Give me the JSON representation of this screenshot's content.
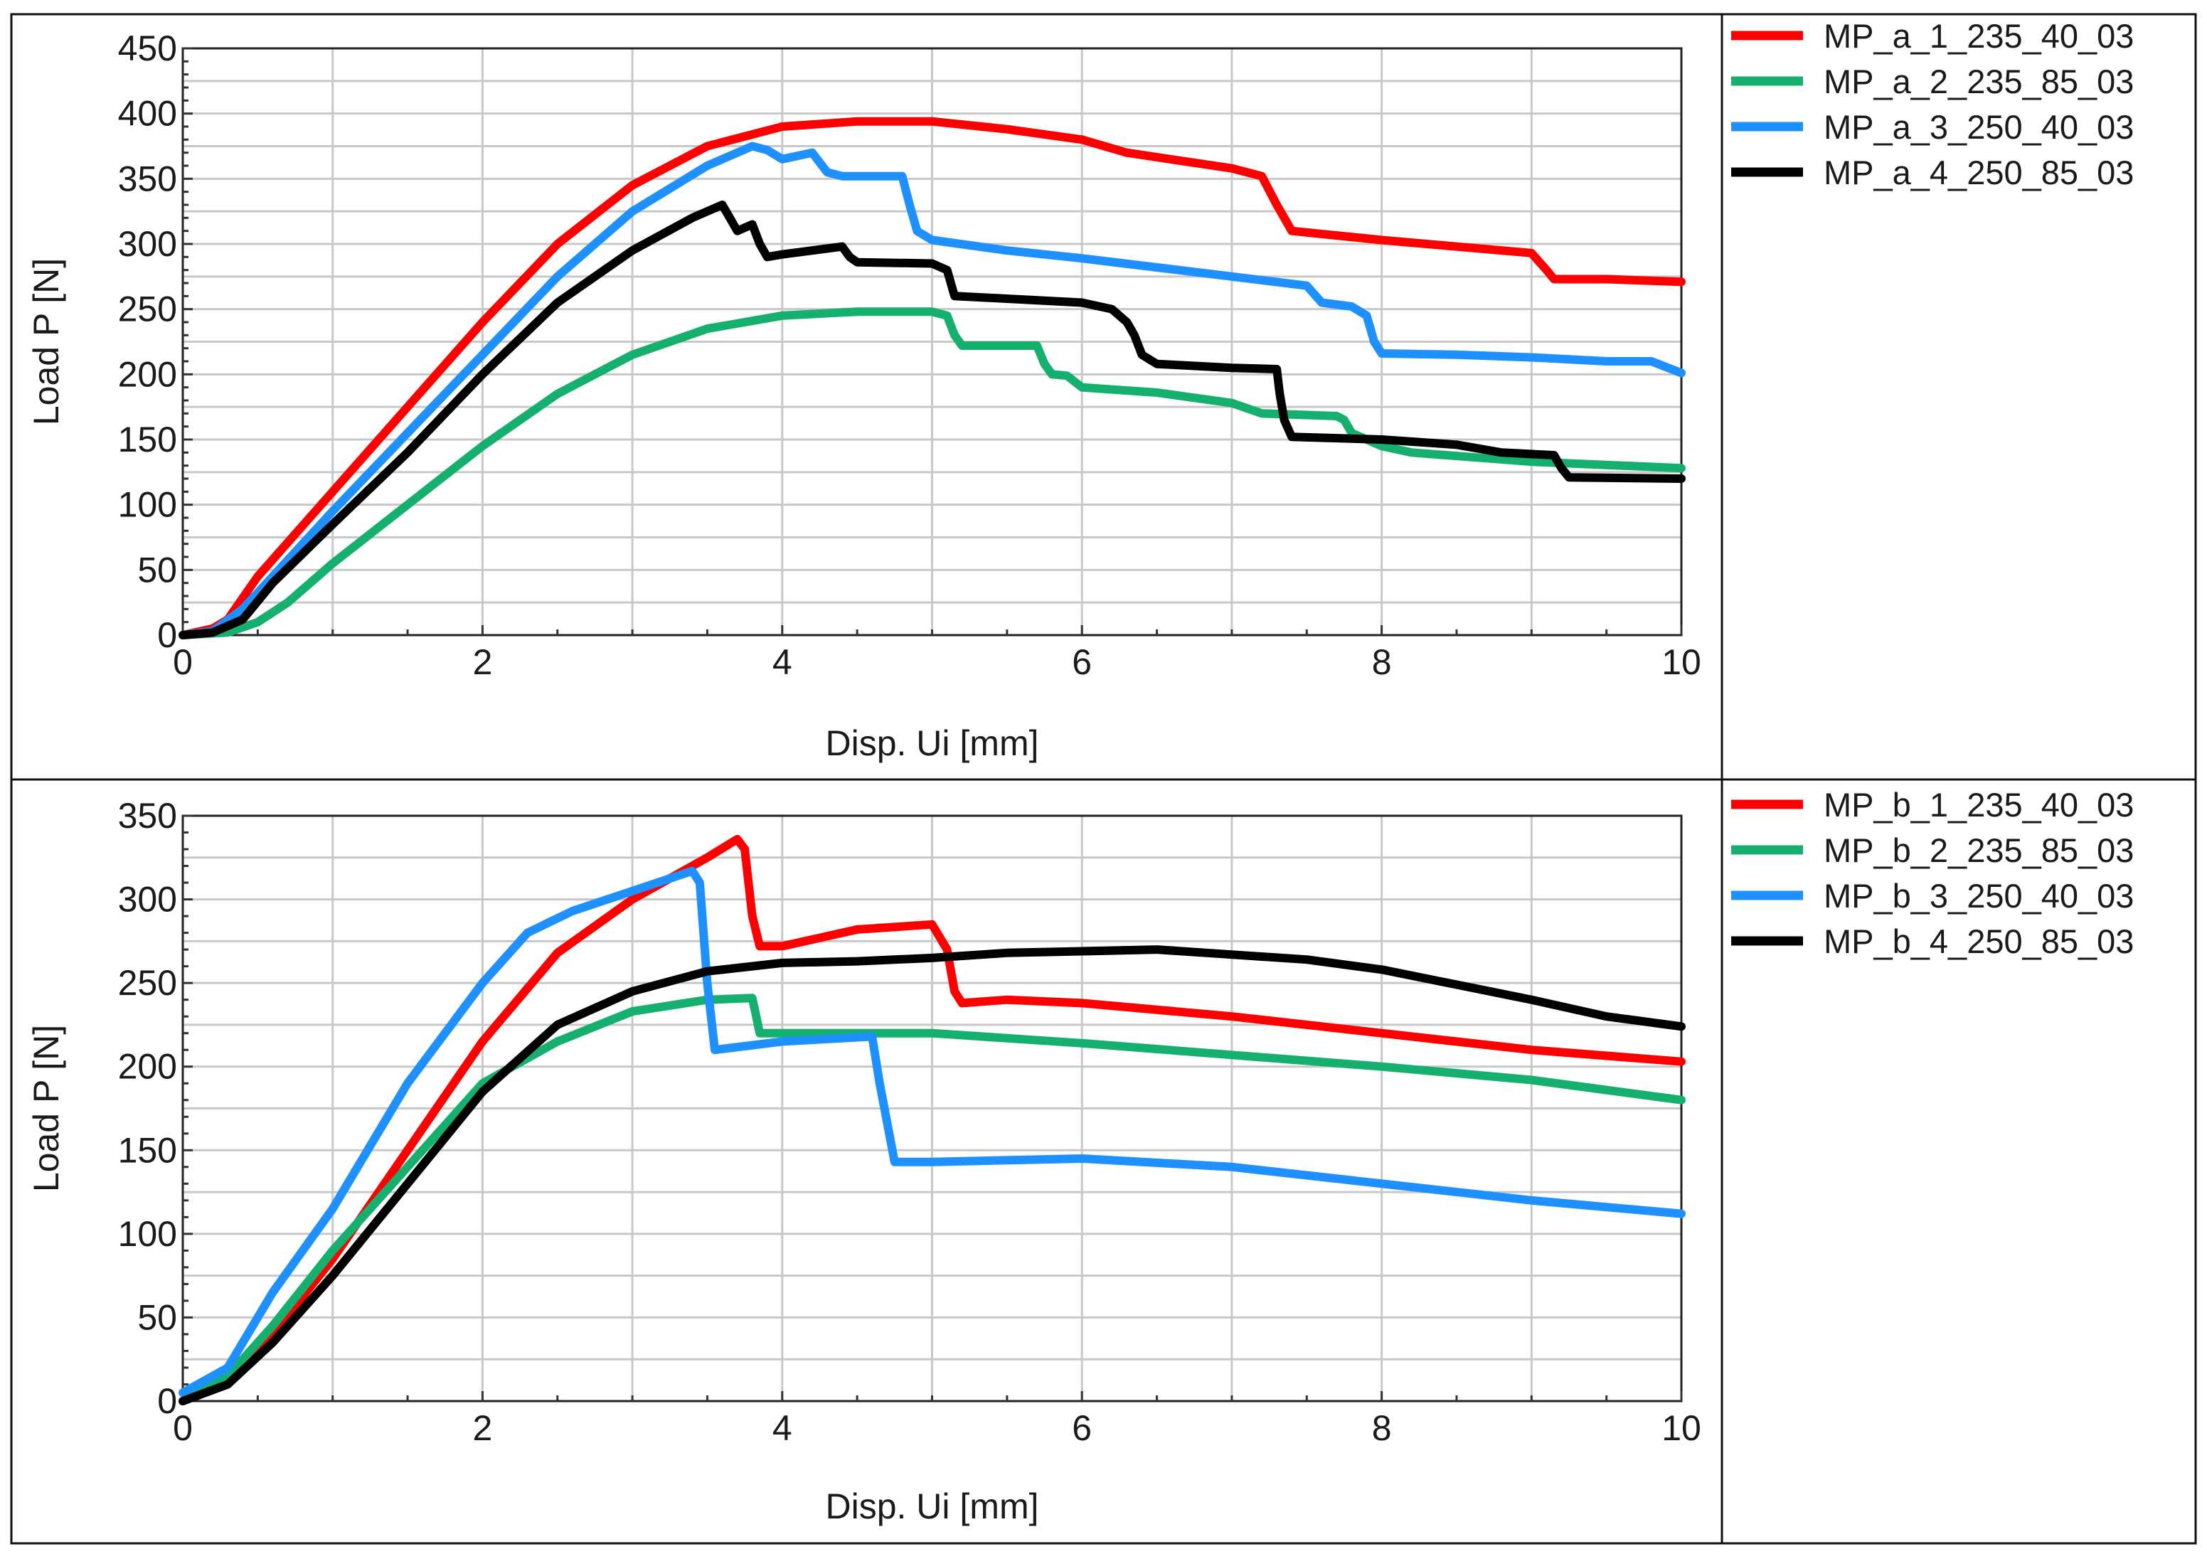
{
  "chart_data": [
    {
      "type": "line",
      "xlabel": "Disp. Ui [mm]",
      "ylabel": "Load P [N]",
      "xlim": [
        0,
        10
      ],
      "ylim": [
        0,
        450
      ],
      "xticks": [
        0,
        2,
        4,
        6,
        8,
        10
      ],
      "yticks": [
        0,
        50,
        100,
        150,
        200,
        250,
        300,
        350,
        400,
        450
      ],
      "grid": true,
      "legend_position": "right",
      "series": [
        {
          "name": "MP_a_1_235_40_03",
          "color": "#ff0000",
          "points": [
            [
              0,
              0
            ],
            [
              0.2,
              5
            ],
            [
              0.3,
              12
            ],
            [
              0.5,
              45
            ],
            [
              1,
              110
            ],
            [
              1.5,
              175
            ],
            [
              2,
              240
            ],
            [
              2.5,
              300
            ],
            [
              3,
              345
            ],
            [
              3.5,
              375
            ],
            [
              4,
              390
            ],
            [
              4.5,
              394
            ],
            [
              5,
              394
            ],
            [
              5.5,
              388
            ],
            [
              6,
              380
            ],
            [
              6.3,
              370
            ],
            [
              7,
              358
            ],
            [
              7.2,
              352
            ],
            [
              7.3,
              330
            ],
            [
              7.4,
              310
            ],
            [
              8,
              303
            ],
            [
              8.5,
              298
            ],
            [
              9,
              293
            ],
            [
              9.1,
              280
            ],
            [
              9.15,
              273
            ],
            [
              9.5,
              273
            ],
            [
              10,
              271
            ]
          ]
        },
        {
          "name": "MP_a_2_235_85_03",
          "color": "#16b06e",
          "points": [
            [
              0,
              0
            ],
            [
              0.3,
              2
            ],
            [
              0.5,
              10
            ],
            [
              0.7,
              25
            ],
            [
              1,
              55
            ],
            [
              1.5,
              100
            ],
            [
              2,
              145
            ],
            [
              2.5,
              185
            ],
            [
              3,
              215
            ],
            [
              3.5,
              235
            ],
            [
              4,
              245
            ],
            [
              4.5,
              248
            ],
            [
              5,
              248
            ],
            [
              5.1,
              245
            ],
            [
              5.15,
              230
            ],
            [
              5.2,
              222
            ],
            [
              5.7,
              222
            ],
            [
              5.75,
              208
            ],
            [
              5.8,
              200
            ],
            [
              5.9,
              199
            ],
            [
              6,
              190
            ],
            [
              6.5,
              186
            ],
            [
              7,
              178
            ],
            [
              7.2,
              170
            ],
            [
              7.7,
              168
            ],
            [
              7.75,
              165
            ],
            [
              7.8,
              155
            ],
            [
              8,
              145
            ],
            [
              8.2,
              140
            ],
            [
              9,
              133
            ],
            [
              10,
              128
            ]
          ]
        },
        {
          "name": "MP_a_3_250_40_03",
          "color": "#1e90ff",
          "points": [
            [
              0,
              0
            ],
            [
              0.2,
              3
            ],
            [
              0.4,
              20
            ],
            [
              0.6,
              45
            ],
            [
              1,
              95
            ],
            [
              1.5,
              155
            ],
            [
              2,
              215
            ],
            [
              2.5,
              275
            ],
            [
              3,
              325
            ],
            [
              3.5,
              360
            ],
            [
              3.8,
              375
            ],
            [
              3.9,
              372
            ],
            [
              4,
              365
            ],
            [
              4.2,
              370
            ],
            [
              4.3,
              355
            ],
            [
              4.4,
              352
            ],
            [
              4.8,
              352
            ],
            [
              4.85,
              330
            ],
            [
              4.9,
              310
            ],
            [
              5,
              303
            ],
            [
              5.5,
              295
            ],
            [
              6,
              289
            ],
            [
              6.5,
              282
            ],
            [
              7,
              275
            ],
            [
              7.5,
              268
            ],
            [
              7.6,
              255
            ],
            [
              7.8,
              252
            ],
            [
              7.9,
              245
            ],
            [
              7.95,
              225
            ],
            [
              8,
              216
            ],
            [
              8.5,
              215
            ],
            [
              9,
              213
            ],
            [
              9.5,
              210
            ],
            [
              9.8,
              210
            ],
            [
              10,
              201
            ]
          ]
        },
        {
          "name": "MP_a_4_250_85_03",
          "color": "#000000",
          "points": [
            [
              0,
              0
            ],
            [
              0.2,
              2
            ],
            [
              0.4,
              12
            ],
            [
              0.6,
              40
            ],
            [
              1,
              85
            ],
            [
              1.5,
              140
            ],
            [
              2,
              200
            ],
            [
              2.5,
              255
            ],
            [
              3,
              295
            ],
            [
              3.4,
              320
            ],
            [
              3.6,
              330
            ],
            [
              3.65,
              320
            ],
            [
              3.7,
              310
            ],
            [
              3.8,
              315
            ],
            [
              3.85,
              300
            ],
            [
              3.9,
              290
            ],
            [
              4,
              292
            ],
            [
              4.4,
              298
            ],
            [
              4.45,
              290
            ],
            [
              4.5,
              286
            ],
            [
              5,
              285
            ],
            [
              5.1,
              280
            ],
            [
              5.15,
              260
            ],
            [
              5.5,
              258
            ],
            [
              6,
              255
            ],
            [
              6.2,
              250
            ],
            [
              6.3,
              240
            ],
            [
              6.35,
              230
            ],
            [
              6.4,
              215
            ],
            [
              6.5,
              208
            ],
            [
              7,
              205
            ],
            [
              7.3,
              204
            ],
            [
              7.32,
              185
            ],
            [
              7.35,
              165
            ],
            [
              7.4,
              152
            ],
            [
              8,
              150
            ],
            [
              8.5,
              146
            ],
            [
              8.8,
              140
            ],
            [
              9.15,
              138
            ],
            [
              9.2,
              128
            ],
            [
              9.25,
              121
            ],
            [
              10,
              120
            ]
          ]
        }
      ]
    },
    {
      "type": "line",
      "xlabel": "Disp. Ui [mm]",
      "ylabel": "Load P [N]",
      "xlim": [
        0,
        10
      ],
      "ylim": [
        0,
        350
      ],
      "xticks": [
        0,
        2,
        4,
        6,
        8,
        10
      ],
      "yticks": [
        0,
        50,
        100,
        150,
        200,
        250,
        300,
        350
      ],
      "grid": true,
      "legend_position": "right",
      "series": [
        {
          "name": "MP_b_1_235_40_03",
          "color": "#ff0000",
          "points": [
            [
              0,
              0
            ],
            [
              0.3,
              12
            ],
            [
              0.6,
              40
            ],
            [
              1,
              85
            ],
            [
              1.5,
              150
            ],
            [
              2,
              215
            ],
            [
              2.5,
              268
            ],
            [
              3,
              300
            ],
            [
              3.5,
              325
            ],
            [
              3.7,
              336
            ],
            [
              3.75,
              330
            ],
            [
              3.8,
              290
            ],
            [
              3.85,
              272
            ],
            [
              4,
              272
            ],
            [
              4.5,
              282
            ],
            [
              5,
              285
            ],
            [
              5.1,
              270
            ],
            [
              5.15,
              245
            ],
            [
              5.2,
              238
            ],
            [
              5.5,
              240
            ],
            [
              6,
              238
            ],
            [
              7,
              230
            ],
            [
              8,
              220
            ],
            [
              9,
              210
            ],
            [
              10,
              203
            ]
          ]
        },
        {
          "name": "MP_b_2_235_85_03",
          "color": "#16b06e",
          "points": [
            [
              0,
              0
            ],
            [
              0.3,
              15
            ],
            [
              0.6,
              45
            ],
            [
              1,
              90
            ],
            [
              1.5,
              140
            ],
            [
              2,
              190
            ],
            [
              2.5,
              215
            ],
            [
              3,
              233
            ],
            [
              3.5,
              240
            ],
            [
              3.8,
              241
            ],
            [
              3.85,
              220
            ],
            [
              4,
              220
            ],
            [
              5,
              220
            ],
            [
              6,
              214
            ],
            [
              7,
              207
            ],
            [
              8,
              200
            ],
            [
              9,
              192
            ],
            [
              10,
              180
            ]
          ]
        },
        {
          "name": "MP_b_3_250_40_03",
          "color": "#1e90ff",
          "points": [
            [
              0,
              5
            ],
            [
              0.3,
              20
            ],
            [
              0.6,
              65
            ],
            [
              1,
              115
            ],
            [
              1.5,
              190
            ],
            [
              2,
              250
            ],
            [
              2.3,
              280
            ],
            [
              2.6,
              293
            ],
            [
              3,
              305
            ],
            [
              3.4,
              317
            ],
            [
              3.45,
              310
            ],
            [
              3.5,
              250
            ],
            [
              3.55,
              210
            ],
            [
              4,
              215
            ],
            [
              4.6,
              218
            ],
            [
              4.65,
              190
            ],
            [
              4.75,
              143
            ],
            [
              5,
              143
            ],
            [
              6,
              145
            ],
            [
              7,
              140
            ],
            [
              8,
              130
            ],
            [
              9,
              120
            ],
            [
              10,
              112
            ]
          ]
        },
        {
          "name": "MP_b_4_250_85_03",
          "color": "#000000",
          "points": [
            [
              0,
              0
            ],
            [
              0.3,
              10
            ],
            [
              0.6,
              35
            ],
            [
              1,
              75
            ],
            [
              1.5,
              130
            ],
            [
              2,
              185
            ],
            [
              2.5,
              225
            ],
            [
              3,
              245
            ],
            [
              3.5,
              257
            ],
            [
              4,
              262
            ],
            [
              4.5,
              263
            ],
            [
              5,
              265
            ],
            [
              5.5,
              268
            ],
            [
              6,
              269
            ],
            [
              6.5,
              270
            ],
            [
              7,
              267
            ],
            [
              7.5,
              264
            ],
            [
              8,
              258
            ],
            [
              8.5,
              249
            ],
            [
              9,
              240
            ],
            [
              9.5,
              230
            ],
            [
              10,
              224
            ]
          ]
        }
      ]
    }
  ]
}
